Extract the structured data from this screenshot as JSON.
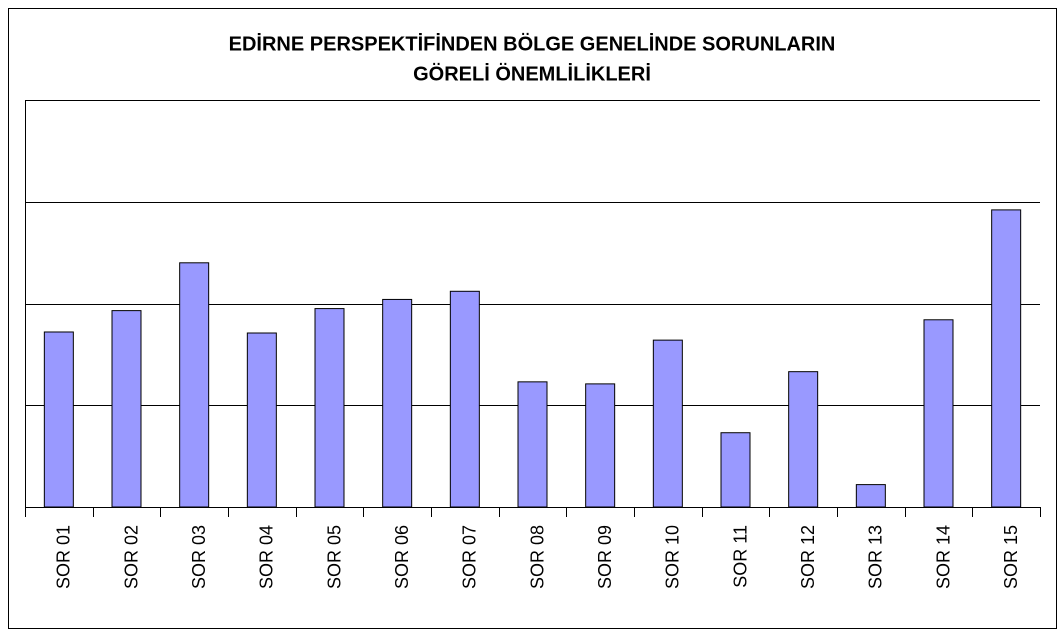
{
  "chart_data": {
    "type": "bar",
    "title": [
      "EDİRNE PERSPEKTİFİNDEN BÖLGE GENELİNDE SORUNLARIN",
      "GÖRELİ ÖNEMLİLİKLERİ"
    ],
    "categories": [
      "SOR 01",
      "SOR 02",
      "SOR 03",
      "SOR 04",
      "SOR 05",
      "SOR 06",
      "SOR 07",
      "SOR 08",
      "SOR 09",
      "SOR 10",
      "SOR 11",
      "SOR 12",
      "SOR 13",
      "SOR 14",
      "SOR 15"
    ],
    "values": [
      1.72,
      1.93,
      2.4,
      1.71,
      1.95,
      2.04,
      2.12,
      1.23,
      1.21,
      1.64,
      0.73,
      1.33,
      0.22,
      1.84,
      2.92
    ],
    "color": "#9999ff",
    "ylim": [
      0,
      4
    ],
    "yticks": [
      1,
      2,
      3,
      4
    ],
    "grid": true
  }
}
